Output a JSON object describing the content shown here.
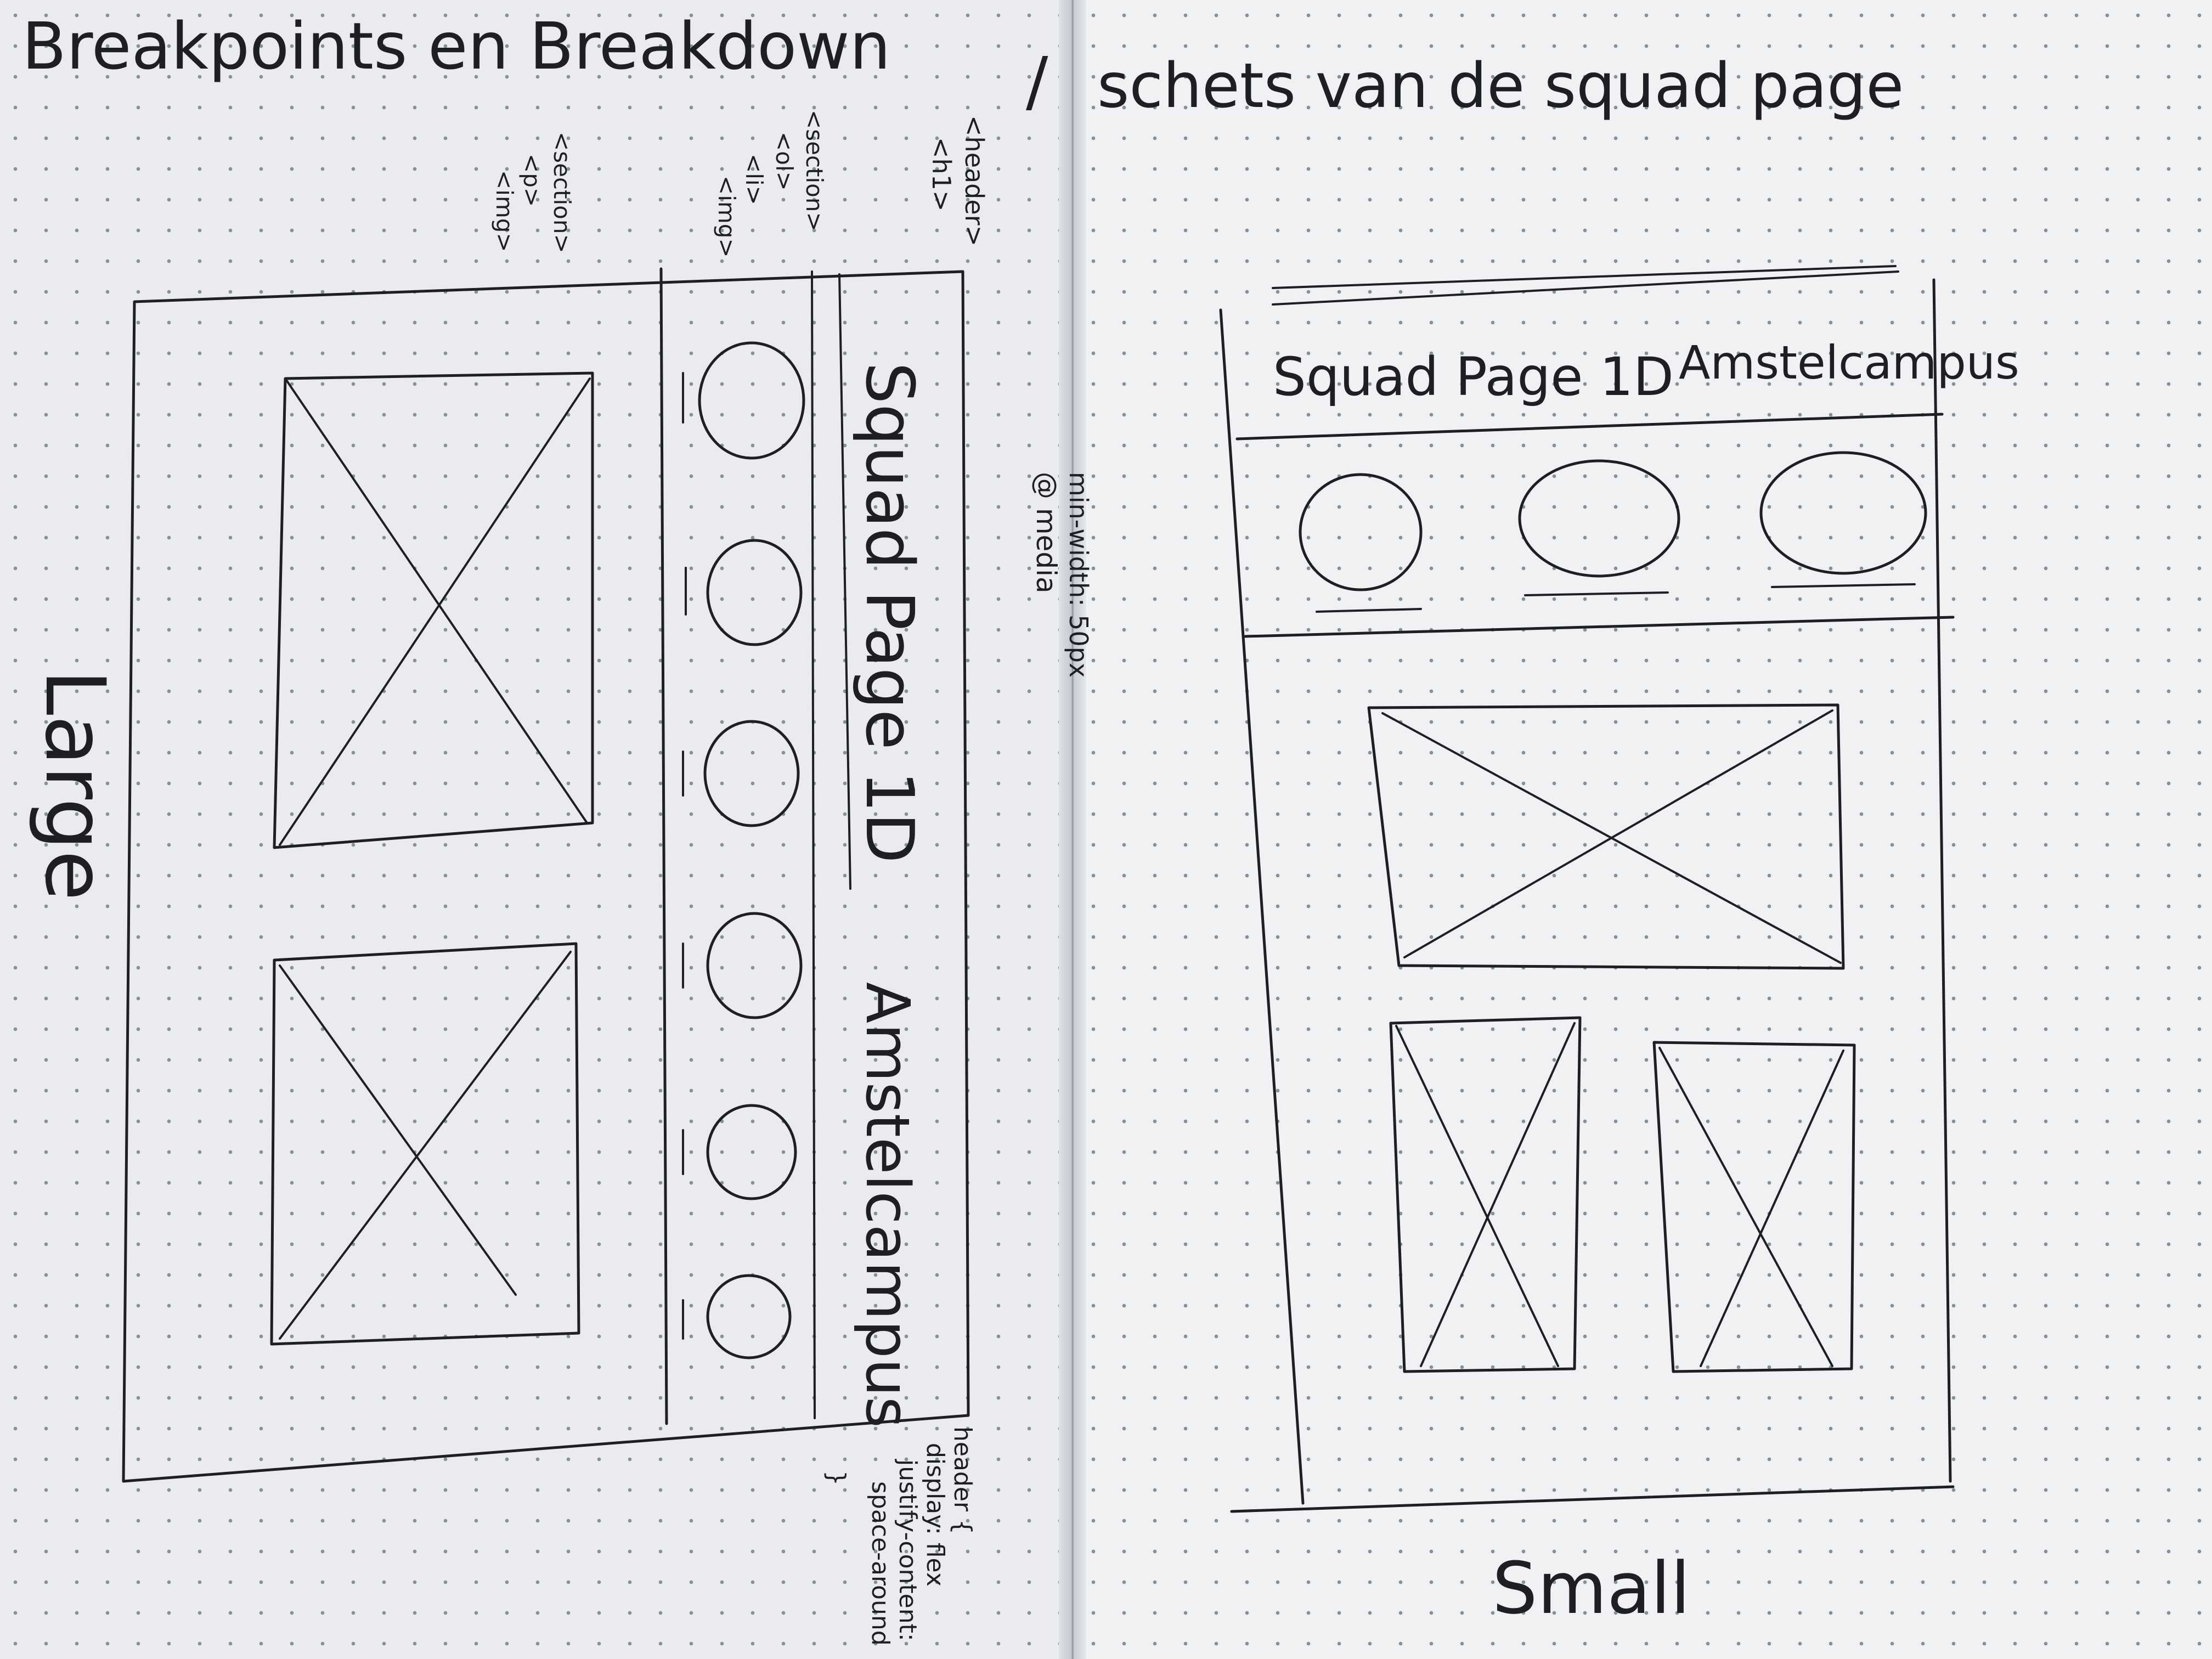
{
  "left_page": {
    "title": "Breakpoints en Breakdown",
    "separator": "/",
    "breakdown": [
      "<header>",
      "<h1>",
      "<section>",
      "<ol>",
      "<li>",
      "<img>",
      "<section>",
      "<p>",
      "<img>"
    ],
    "media_note": [
      "@ media",
      "min-width: 50px"
    ],
    "wireframe": {
      "header_left": "Squad Page 1D",
      "header_right": "Amstelcampus"
    },
    "css_note": [
      "header {",
      "display: flex",
      "justify-content:",
      "space-around",
      "}"
    ],
    "label": "Large"
  },
  "right_page": {
    "title": "schets van de squad page",
    "wireframe": {
      "header_left": "Squad Page 1D",
      "header_right": "Amstelcampus"
    },
    "label": "Small"
  },
  "colors": {
    "ink": "#1d1f24",
    "paper": "#eceef0",
    "dots": "#8b8f95"
  }
}
